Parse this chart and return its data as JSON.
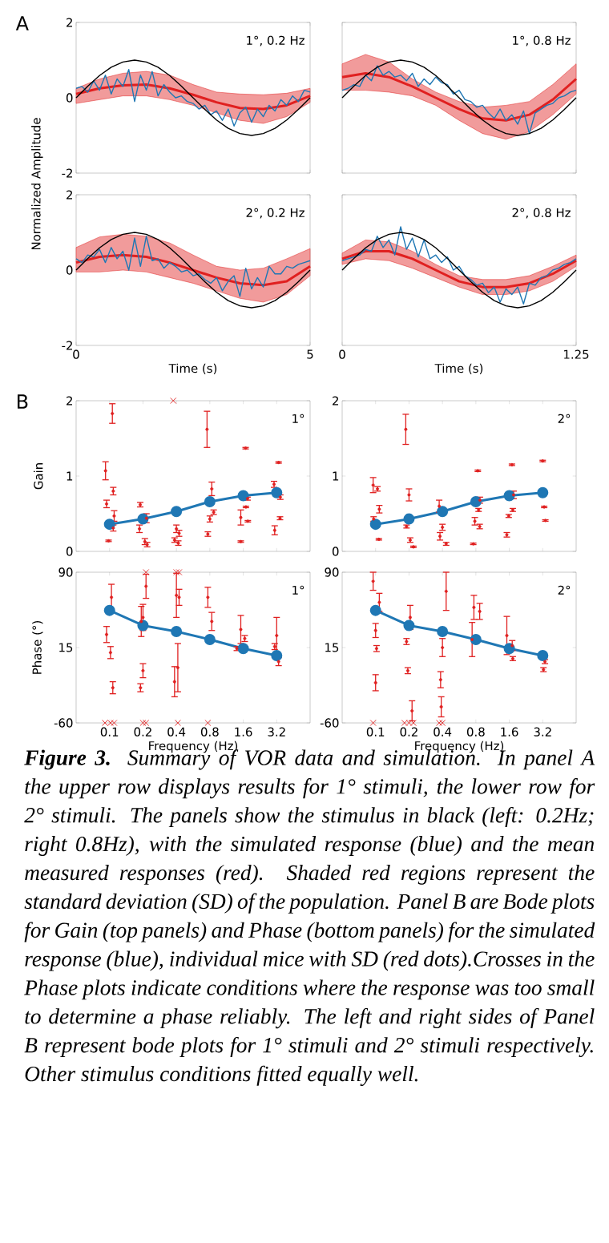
{
  "chart_data": [
    {
      "type": "line",
      "xlim": [
        0,
        5
      ],
      "ylim": [
        -2,
        2
      ],
      "xticks": [
        0,
        5
      ],
      "yticks": [
        -2,
        0,
        2
      ],
      "tick_labels": "y",
      "ylabel": "Normalized Amplitude",
      "annotations": [
        "A",
        "1°, 0.2 Hz"
      ],
      "series": [
        {
          "color": "#e02020",
          "x": [
            0,
            0.5,
            1,
            1.5,
            2,
            2.5,
            3,
            3.5,
            4,
            4.5,
            5
          ],
          "values": [
            0.1,
            0.25,
            0.33,
            0.35,
            0.25,
            0.08,
            -0.12,
            -0.27,
            -0.3,
            -0.2,
            0.05
          ],
          "upper": [
            0.25,
            0.5,
            0.65,
            0.7,
            0.6,
            0.35,
            0.15,
            0.1,
            0.08,
            0.12,
            0.25
          ],
          "lower": [
            -0.15,
            -0.05,
            0.05,
            0.05,
            -0.05,
            -0.2,
            -0.4,
            -0.6,
            -0.68,
            -0.5,
            -0.12
          ]
        },
        {
          "color": "#1f77b4",
          "x": [
            0,
            0.125,
            0.25,
            0.375,
            0.5,
            0.625,
            0.75,
            0.875,
            1,
            1.125,
            1.25,
            1.375,
            1.5,
            1.625,
            1.75,
            1.875,
            2,
            2.125,
            2.25,
            2.375,
            2.5,
            2.625,
            2.75,
            2.875,
            3,
            3.125,
            3.25,
            3.375,
            3.5,
            3.625,
            3.75,
            3.875,
            4,
            4.125,
            4.25,
            4.375,
            4.5,
            4.625,
            4.75,
            4.875,
            5
          ],
          "values": [
            0.25,
            0.3,
            0.15,
            0.45,
            0.2,
            0.6,
            0.1,
            0.5,
            0.3,
            0.75,
            -0.1,
            0.6,
            0.2,
            0.7,
            0.05,
            0.35,
            0.15,
            0.0,
            0.05,
            -0.1,
            -0.15,
            -0.3,
            -0.2,
            -0.45,
            -0.35,
            -0.6,
            -0.3,
            -0.75,
            -0.4,
            -0.25,
            -0.65,
            -0.3,
            -0.5,
            -0.2,
            -0.35,
            -0.05,
            -0.2,
            0.05,
            -0.1,
            0.2,
            0.15
          ]
        },
        {
          "color": "#000000",
          "x": [
            0,
            0.25,
            0.5,
            0.75,
            1,
            1.25,
            1.5,
            1.75,
            2,
            2.25,
            2.5,
            2.75,
            3,
            3.25,
            3.5,
            3.75,
            4,
            4.25,
            4.5,
            4.75,
            5
          ],
          "values": [
            0,
            0.31,
            0.59,
            0.81,
            0.95,
            1,
            0.95,
            0.81,
            0.59,
            0.31,
            0,
            -0.31,
            -0.59,
            -0.81,
            -0.95,
            -1,
            -0.95,
            -0.81,
            -0.59,
            -0.31,
            0
          ]
        }
      ]
    },
    {
      "type": "line",
      "xlim": [
        0,
        1.25
      ],
      "ylim": [
        -2,
        2
      ],
      "xticks": [
        0,
        1.25
      ],
      "yticks": [
        -2,
        0,
        2
      ],
      "tick_labels": false,
      "annotations": [
        "1°, 0.8 Hz"
      ],
      "series": [
        {
          "color": "#e02020",
          "x": [
            0,
            0.125,
            0.25,
            0.375,
            0.5,
            0.625,
            0.75,
            0.875,
            1,
            1.125,
            1.25
          ],
          "values": [
            0.55,
            0.65,
            0.55,
            0.3,
            0.0,
            -0.3,
            -0.55,
            -0.6,
            -0.45,
            -0.05,
            0.5
          ],
          "upper": [
            0.9,
            1.15,
            0.95,
            0.5,
            0.15,
            -0.1,
            -0.25,
            -0.2,
            -0.1,
            0.35,
            0.9
          ],
          "lower": [
            0.2,
            0.2,
            0.15,
            0.05,
            -0.2,
            -0.6,
            -0.95,
            -1.1,
            -0.9,
            -0.45,
            0.1
          ]
        },
        {
          "color": "#1f77b4",
          "x": [
            0,
            0.03125,
            0.0625,
            0.09375,
            0.125,
            0.15625,
            0.1875,
            0.21875,
            0.25,
            0.28125,
            0.3125,
            0.34375,
            0.375,
            0.40625,
            0.4375,
            0.46875,
            0.5,
            0.53125,
            0.5625,
            0.59375,
            0.625,
            0.65625,
            0.6875,
            0.71875,
            0.75,
            0.78125,
            0.8125,
            0.84375,
            0.875,
            0.90625,
            0.9375,
            0.96875,
            1,
            1.03125,
            1.0625,
            1.09375,
            1.125,
            1.15625,
            1.1875,
            1.21875,
            1.25
          ],
          "values": [
            0.2,
            0.25,
            0.35,
            0.3,
            0.6,
            0.45,
            0.85,
            0.6,
            0.7,
            0.55,
            0.6,
            0.45,
            0.65,
            0.3,
            0.5,
            0.35,
            0.55,
            0.4,
            0.35,
            0.1,
            0.2,
            -0.05,
            -0.1,
            -0.25,
            -0.2,
            -0.4,
            -0.55,
            -0.3,
            -0.6,
            -0.45,
            -0.7,
            -0.35,
            -0.95,
            -0.4,
            -0.3,
            -0.2,
            -0.15,
            0.0,
            0.05,
            0.15,
            0.2
          ]
        },
        {
          "color": "#000000",
          "x": [
            0,
            0.0625,
            0.125,
            0.1875,
            0.25,
            0.3125,
            0.375,
            0.4375,
            0.5,
            0.5625,
            0.625,
            0.6875,
            0.75,
            0.8125,
            0.875,
            0.9375,
            1,
            1.0625,
            1.125,
            1.1875,
            1.25
          ],
          "values": [
            0,
            0.31,
            0.59,
            0.81,
            0.95,
            1,
            0.95,
            0.81,
            0.59,
            0.31,
            0,
            -0.31,
            -0.59,
            -0.81,
            -0.95,
            -1,
            -0.95,
            -0.81,
            -0.59,
            -0.31,
            0
          ]
        }
      ]
    },
    {
      "type": "line",
      "xlim": [
        0,
        5
      ],
      "ylim": [
        -2,
        2
      ],
      "xticks": [
        0,
        5
      ],
      "yticks": [
        -2,
        0,
        2
      ],
      "xlabel": "Time (s)",
      "annotations": [
        "2°, 0.2 Hz"
      ],
      "series": [
        {
          "color": "#e02020",
          "x": [
            0,
            0.5,
            1,
            1.5,
            2,
            2.5,
            3,
            3.5,
            4,
            4.5,
            5
          ],
          "values": [
            0.2,
            0.35,
            0.4,
            0.35,
            0.2,
            0.0,
            -0.2,
            -0.35,
            -0.4,
            -0.3,
            0.1
          ],
          "upper": [
            0.6,
            0.88,
            0.95,
            0.9,
            0.72,
            0.4,
            0.1,
            0.0,
            0.05,
            0.3,
            0.57
          ],
          "lower": [
            -0.05,
            -0.05,
            0.0,
            -0.05,
            -0.2,
            -0.35,
            -0.55,
            -0.75,
            -0.85,
            -0.65,
            -0.15
          ]
        },
        {
          "color": "#1f77b4",
          "x": [
            0,
            0.125,
            0.25,
            0.375,
            0.5,
            0.625,
            0.75,
            0.875,
            1,
            1.125,
            1.25,
            1.375,
            1.5,
            1.625,
            1.75,
            1.875,
            2,
            2.125,
            2.25,
            2.375,
            2.5,
            2.625,
            2.75,
            2.875,
            3,
            3.125,
            3.25,
            3.375,
            3.5,
            3.625,
            3.75,
            3.875,
            4,
            4.125,
            4.25,
            4.375,
            4.5,
            4.625,
            4.75,
            4.875,
            5
          ],
          "values": [
            0.3,
            0.2,
            0.4,
            0.35,
            0.55,
            0.2,
            0.6,
            0.3,
            0.5,
            0.0,
            0.85,
            0.1,
            0.9,
            0.25,
            0.3,
            0.05,
            0.2,
            0.1,
            -0.05,
            0.0,
            -0.15,
            -0.1,
            -0.25,
            -0.35,
            -0.2,
            -0.55,
            -0.3,
            -0.15,
            -0.7,
            0.05,
            -0.5,
            -0.2,
            -0.45,
            0.1,
            -0.1,
            -0.1,
            0.1,
            0.05,
            0.15,
            0.2,
            0.25
          ]
        },
        {
          "color": "#000000",
          "x": [
            0,
            0.25,
            0.5,
            0.75,
            1,
            1.25,
            1.5,
            1.75,
            2,
            2.25,
            2.5,
            2.75,
            3,
            3.25,
            3.5,
            3.75,
            4,
            4.25,
            4.5,
            4.75,
            5
          ],
          "values": [
            0,
            0.31,
            0.59,
            0.81,
            0.95,
            1,
            0.95,
            0.81,
            0.59,
            0.31,
            0,
            -0.31,
            -0.59,
            -0.81,
            -0.95,
            -1,
            -0.95,
            -0.81,
            -0.59,
            -0.31,
            0
          ]
        }
      ]
    },
    {
      "type": "line",
      "xlim": [
        0,
        1.25
      ],
      "ylim": [
        -2,
        2
      ],
      "xticks": [
        0,
        1.25
      ],
      "yticks": [
        -2,
        0,
        2
      ],
      "tick_labels": "x",
      "xlabel": "Time (s)",
      "annotations": [
        "2°, 0.8 Hz"
      ],
      "series": [
        {
          "color": "#e02020",
          "x": [
            0,
            0.125,
            0.25,
            0.375,
            0.5,
            0.625,
            0.75,
            0.875,
            1,
            1.125,
            1.25
          ],
          "values": [
            0.3,
            0.5,
            0.5,
            0.3,
            0.0,
            -0.3,
            -0.45,
            -0.45,
            -0.35,
            -0.1,
            0.25
          ],
          "upper": [
            0.45,
            0.8,
            0.75,
            0.5,
            0.15,
            -0.15,
            -0.25,
            -0.25,
            -0.15,
            0.1,
            0.4
          ],
          "lower": [
            0.15,
            0.3,
            0.25,
            0.05,
            -0.2,
            -0.45,
            -0.65,
            -0.65,
            -0.55,
            -0.3,
            0.1
          ]
        },
        {
          "color": "#1f77b4",
          "x": [
            0,
            0.03125,
            0.0625,
            0.09375,
            0.125,
            0.15625,
            0.1875,
            0.21875,
            0.25,
            0.28125,
            0.3125,
            0.34375,
            0.375,
            0.40625,
            0.4375,
            0.46875,
            0.5,
            0.53125,
            0.5625,
            0.59375,
            0.625,
            0.65625,
            0.6875,
            0.71875,
            0.75,
            0.78125,
            0.8125,
            0.84375,
            0.875,
            0.90625,
            0.9375,
            0.96875,
            1,
            1.03125,
            1.0625,
            1.09375,
            1.125,
            1.15625,
            1.1875,
            1.21875,
            1.25
          ],
          "values": [
            0.25,
            0.3,
            0.35,
            0.4,
            0.55,
            0.5,
            0.9,
            0.6,
            0.8,
            0.4,
            1.15,
            0.55,
            0.85,
            0.35,
            0.8,
            0.3,
            0.4,
            0.2,
            0.35,
            0.0,
            0.1,
            -0.15,
            -0.25,
            -0.4,
            -0.35,
            -0.6,
            -0.45,
            -0.85,
            -0.5,
            -0.65,
            -0.45,
            -0.9,
            -0.35,
            -0.4,
            -0.2,
            -0.15,
            0.0,
            0.05,
            0.15,
            0.2,
            0.3
          ]
        },
        {
          "color": "#000000",
          "x": [
            0,
            0.0625,
            0.125,
            0.1875,
            0.25,
            0.3125,
            0.375,
            0.4375,
            0.5,
            0.5625,
            0.625,
            0.6875,
            0.75,
            0.8125,
            0.875,
            0.9375,
            1,
            1.0625,
            1.125,
            1.1875,
            1.25
          ],
          "values": [
            0,
            0.31,
            0.59,
            0.81,
            0.95,
            1,
            0.95,
            0.81,
            0.59,
            0.31,
            0,
            -0.31,
            -0.59,
            -0.81,
            -0.95,
            -1,
            -0.95,
            -0.81,
            -0.59,
            -0.31,
            0
          ]
        }
      ]
    },
    {
      "type": "line",
      "log": "x",
      "xlim": [
        0.05,
        6.4
      ],
      "ylim": [
        0,
        2
      ],
      "xticks": [
        0.1,
        0.2,
        0.4,
        0.8,
        1.6,
        3.2
      ],
      "yticks": [
        0,
        1,
        2
      ],
      "tick_labels": "y",
      "ylabel": "Gain",
      "annotations": [
        "B",
        "1°"
      ],
      "series": [
        {
          "type": "line",
          "marker": "circle",
          "color": "#1f77b4",
          "x": [
            0.1,
            0.2,
            0.4,
            0.8,
            1.6,
            3.2
          ],
          "values": [
            0.36,
            0.43,
            0.53,
            0.66,
            0.74,
            0.78
          ]
        },
        {
          "type": "scatter",
          "marker": "circle",
          "color": "#e02020",
          "x": [
            0.106,
            0.092,
            0.108,
            0.094,
            0.11,
            0.108,
            0.098,
            0.189,
            0.215,
            0.186,
            0.208,
            0.218,
            0.4,
            0.423,
            0.385,
            0.416,
            0.755,
            0.833,
            0.8,
            0.866,
            0.768,
            1.68,
            1.75,
            1.52,
            1.69,
            1.76,
            1.52,
            3.33,
            3.03,
            3.45,
            3.43,
            3.07
          ],
          "values": [
            1.83,
            1.07,
            0.8,
            0.63,
            0.47,
            0.31,
            0.14,
            0.62,
            0.44,
            0.3,
            0.13,
            0.09,
            0.3,
            0.24,
            0.15,
            0.11,
            1.62,
            0.83,
            0.43,
            0.52,
            0.23,
            1.37,
            0.7,
            0.45,
            0.59,
            0.4,
            0.13,
            1.18,
            0.89,
            0.72,
            0.44,
            0.28
          ],
          "errors": [
            0.13,
            0.12,
            0.05,
            0.05,
            0.07,
            0.04,
            0.01,
            0.03,
            0.06,
            0.05,
            0.04,
            0.03,
            0.05,
            0.04,
            0.03,
            0.03,
            0.24,
            0.09,
            0.04,
            0.03,
            0.03,
            0.01,
            0.02,
            0.1,
            0.01,
            0.01,
            0.01,
            0.01,
            0.04,
            0.03,
            0.02,
            0.06
          ]
        },
        {
          "type": "scatter",
          "marker": "cross",
          "color": "#e02020",
          "x": [
            0.375
          ],
          "values": [
            2
          ]
        }
      ]
    },
    {
      "type": "line",
      "log": "x",
      "xlim": [
        0.05,
        6.4
      ],
      "ylim": [
        0,
        2
      ],
      "xticks": [
        0.1,
        0.2,
        0.4,
        0.8,
        1.6,
        3.2
      ],
      "yticks": [
        0,
        1,
        2
      ],
      "tick_labels": "y",
      "annotations": [
        "2°"
      ],
      "series": [
        {
          "type": "line",
          "marker": "circle",
          "color": "#1f77b4",
          "x": [
            0.1,
            0.2,
            0.4,
            0.8,
            1.6,
            3.2
          ],
          "values": [
            0.36,
            0.43,
            0.53,
            0.66,
            0.74,
            0.78
          ]
        },
        {
          "type": "scatter",
          "marker": "circle",
          "color": "#e02020",
          "x": [
            0.095,
            0.104,
            0.108,
            0.096,
            0.107,
            0.187,
            0.2,
            0.19,
            0.205,
            0.219,
            0.374,
            0.4,
            0.38,
            0.432,
            0.833,
            0.87,
            0.846,
            0.783,
            0.866,
            0.758,
            1.69,
            1.75,
            1.72,
            1.58,
            1.52,
            3.2,
            3.3,
            3.38
          ],
          "values": [
            0.88,
            0.83,
            0.56,
            0.43,
            0.16,
            1.62,
            0.75,
            0.33,
            0.15,
            0.06,
            0.6,
            0.32,
            0.2,
            0.1,
            1.07,
            0.68,
            0.55,
            0.4,
            0.33,
            0.1,
            1.15,
            0.75,
            0.55,
            0.47,
            0.22,
            1.2,
            0.59,
            0.41
          ],
          "errors": [
            0.1,
            0.03,
            0.05,
            0.03,
            0.01,
            0.2,
            0.08,
            0.02,
            0.03,
            0.01,
            0.08,
            0.04,
            0.05,
            0.02,
            0.01,
            0.04,
            0.02,
            0.05,
            0.03,
            0.01,
            0.01,
            0.05,
            0.02,
            0.02,
            0.03,
            0.01,
            0.01,
            0.01
          ]
        }
      ]
    },
    {
      "type": "line",
      "log": "x",
      "xlim": [
        0.05,
        6.4
      ],
      "ylim": [
        -60,
        90
      ],
      "xticks": [
        0.1,
        0.2,
        0.4,
        0.8,
        1.6,
        3.2
      ],
      "yticks": [
        -60,
        15,
        90
      ],
      "xlabel": "Frequency (Hz)",
      "ylabel": "Phase (°)",
      "annotations": [
        "1°"
      ],
      "series": [
        {
          "type": "line",
          "marker": "circle",
          "color": "#1f77b4",
          "x": [
            0.1,
            0.2,
            0.4,
            0.8,
            1.6,
            3.2
          ],
          "values": [
            52,
            37,
            31,
            23,
            14,
            7
          ]
        },
        {
          "type": "scatter",
          "marker": "circle",
          "color": "#e02020",
          "x": [
            0.104,
            0.094,
            0.102,
            0.107,
            0.193,
            0.2,
            0.213,
            0.2,
            0.19,
            0.4,
            0.423,
            0.385,
            0.412,
            0.768,
            0.833,
            1.52,
            1.65,
            1.4,
            3.2,
            3.07,
            3.33
          ],
          "values": [
            65,
            28,
            10,
            -25,
            41,
            45,
            76,
            -8,
            -25,
            67,
            65,
            -19,
            -5,
            65,
            41,
            33,
            24,
            14,
            27,
            16,
            1
          ],
          "errors": [
            13,
            8,
            6,
            6,
            15,
            13,
            12,
            7,
            4,
            22,
            8,
            15,
            24,
            10,
            9,
            14,
            3,
            2,
            18,
            3,
            4
          ]
        },
        {
          "type": "scatter",
          "marker": "cross",
          "color": "#e02020",
          "x": [
            0.091,
            0.102,
            0.11,
            0.2,
            0.213,
            0.412,
            0.768,
            0.213,
            0.4,
            0.423
          ],
          "values": [
            -60,
            -60,
            -60,
            -60,
            -60,
            -60,
            -60,
            90,
            90,
            90
          ]
        }
      ]
    },
    {
      "type": "line",
      "log": "x",
      "xlim": [
        0.05,
        6.4
      ],
      "ylim": [
        -60,
        90
      ],
      "xticks": [
        0.1,
        0.2,
        0.4,
        0.8,
        1.6,
        3.2
      ],
      "yticks": [
        -60,
        15,
        90
      ],
      "xlabel": "Frequency (Hz)",
      "annotations": [
        "2°",
        "**Figure 3.** Summary of VOR data and simulation. In panel A the upper row displays results for 1° stimuli, the lower row for 2° stimuli. The panels show the stimulus in black (left: 0.2Hz; right 0.8Hz), with the simulated response (blue) and the mean measured responses (red). Shaded red regions represent the standard deviation (SD) of the population. Panel B are Bode plots for Gain (top panels) and Phase (bottom panels) for the simulated response (blue), individual mice with SD (red dots).Crosses in the Phase plots indicate conditions where the response was too small to determine a phase reliably. The left and right sides of Panel B represent bode plots for 1° stimuli and 2° stimuli respectively. Other stimulus conditions fitted equally well."
      ],
      "series": [
        {
          "type": "line",
          "marker": "circle",
          "color": "#1f77b4",
          "x": [
            0.1,
            0.2,
            0.4,
            0.8,
            1.6,
            3.2
          ],
          "values": [
            52,
            37,
            31,
            23,
            14,
            7
          ]
        },
        {
          "type": "scatter",
          "marker": "circle",
          "color": "#e02020",
          "x": [
            0.095,
            0.108,
            0.1,
            0.102,
            0.1,
            0.205,
            0.19,
            0.195,
            0.213,
            0.432,
            0.4,
            0.385,
            0.39,
            0.768,
            0.866,
            0.74,
            1.52,
            1.7,
            1.72,
            3.35,
            3.25
          ],
          "values": [
            81,
            60,
            32,
            14,
            -20,
            45,
            21,
            -8,
            -48,
            71,
            15,
            -17,
            -44,
            55,
            51,
            23,
            27,
            17,
            4,
            1,
            -7
          ],
          "errors": [
            9,
            9,
            7,
            3,
            8,
            12,
            3,
            3,
            10,
            19,
            9,
            8,
            10,
            12,
            8,
            17,
            19,
            5,
            2,
            2,
            2
          ]
        },
        {
          "type": "scatter",
          "marker": "cross",
          "color": "#e02020",
          "x": [
            0.095,
            0.182,
            0.2,
            0.219,
            0.374,
            0.4
          ],
          "values": [
            -60,
            -60,
            -60,
            -60,
            -60,
            -60
          ]
        }
      ]
    }
  ]
}
